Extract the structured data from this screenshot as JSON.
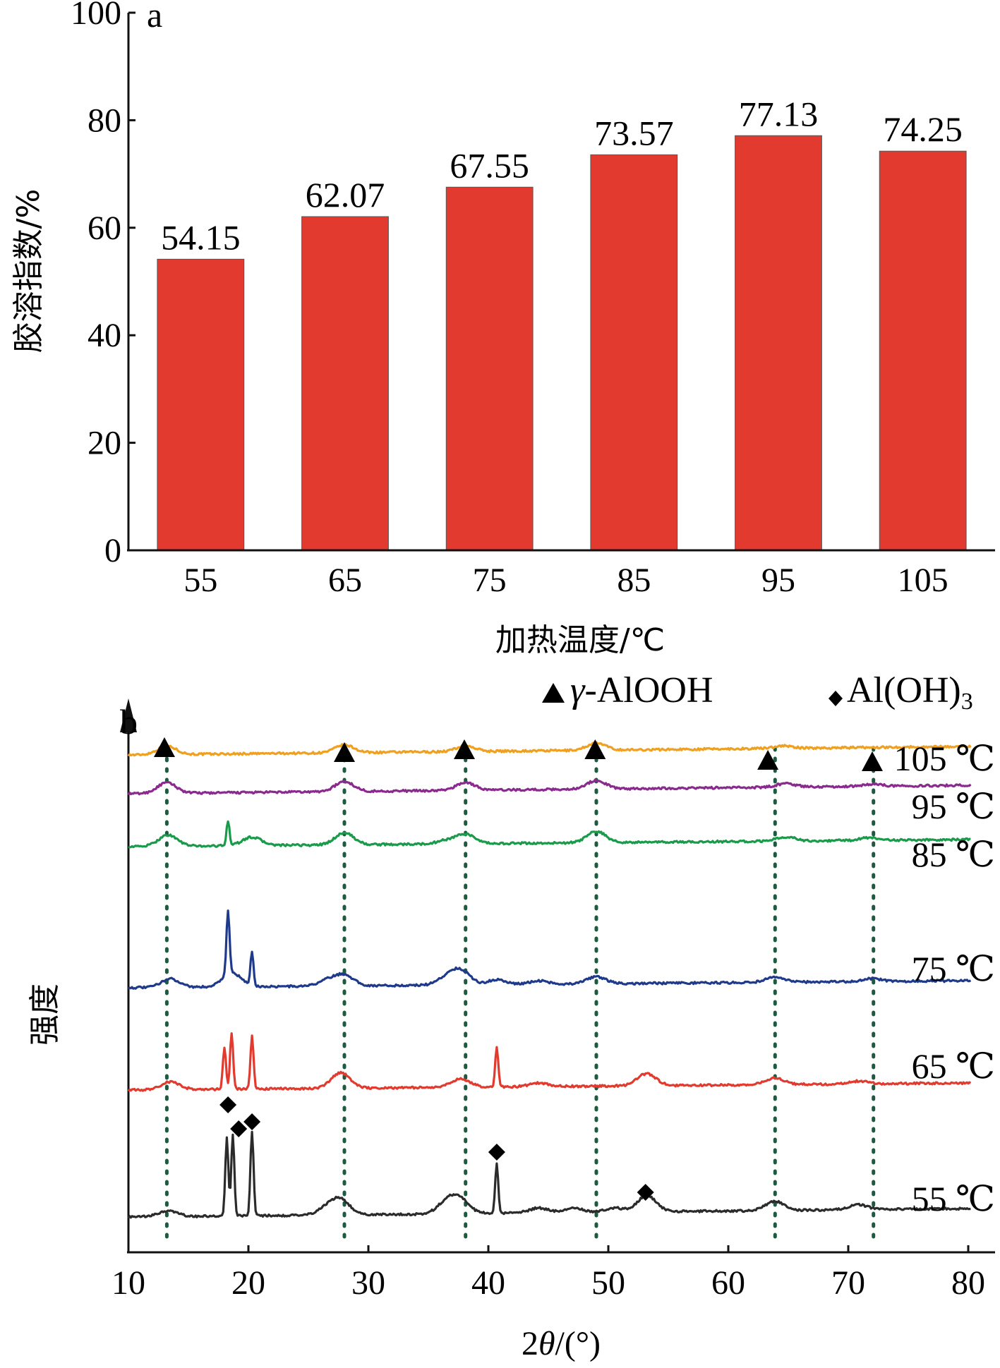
{
  "chart_data": [
    {
      "type": "bar",
      "panel_label": "a",
      "categories": [
        "55",
        "65",
        "75",
        "85",
        "95",
        "105"
      ],
      "values": [
        54.15,
        62.07,
        67.55,
        73.57,
        77.13,
        74.25
      ],
      "data_labels": [
        "54.15",
        "62.07",
        "67.55",
        "73.57",
        "77.13",
        "74.25"
      ],
      "xlabel": "加热温度/℃",
      "ylabel": "胶溶指数/%",
      "ylim": [
        0,
        100
      ],
      "yticks": [
        "0",
        "20",
        "40",
        "60",
        "80",
        "100"
      ],
      "bar_color": "#e23a2e",
      "grid": false
    },
    {
      "type": "line",
      "panel_label": "b",
      "xlabel": "2θ/(°)",
      "xlabel_parts": {
        "num": "2",
        "theta": "θ",
        "unit": "/(°)"
      },
      "ylabel": "强度",
      "xlim": [
        10,
        80
      ],
      "xticks": [
        "10",
        "20",
        "30",
        "40",
        "50",
        "60",
        "70",
        "80"
      ],
      "legend": {
        "boehmite": "γ-AlOOH",
        "boehmite_parts": {
          "gamma": "γ",
          "rest": "-AlOOH"
        },
        "gibbsite": "Al(OH)",
        "gibbsite_sub": "3",
        "placement": "top-right"
      },
      "reference_lines_2theta": [
        13.2,
        28.0,
        38.1,
        49.0,
        63.9,
        72.1
      ],
      "boehmite_markers_2theta": [
        13.0,
        28.0,
        38.0,
        48.9,
        63.3,
        72.0
      ],
      "gibbsite_markers_2theta": [
        18.3,
        18.6,
        20.3,
        40.7,
        53.1
      ],
      "series": [
        {
          "name": "105 ℃",
          "color": "#f0a020",
          "peaks": [
            [
              13.2,
              1.2
            ],
            [
              28.0,
              1.1
            ],
            [
              38.1,
              0.8
            ],
            [
              49.0,
              1.0
            ],
            [
              64.5,
              0.35
            ]
          ]
        },
        {
          "name": "95 ℃",
          "color": "#8b2a8e",
          "peaks": [
            [
              13.2,
              1.5
            ],
            [
              28.0,
              1.4
            ],
            [
              38.1,
              1.1
            ],
            [
              49.0,
              1.2
            ],
            [
              64.8,
              0.5
            ],
            [
              72.0,
              0.3
            ]
          ]
        },
        {
          "name": "85 ℃",
          "color": "#1a9a4a",
          "peaks": [
            [
              13.3,
              1.6
            ],
            [
              18.3,
              3.5
            ],
            [
              20.3,
              1.2
            ],
            [
              28.0,
              1.7
            ],
            [
              36.5,
              0.5
            ],
            [
              38.1,
              1.3
            ],
            [
              49.0,
              1.6
            ],
            [
              64.8,
              0.6
            ],
            [
              71.8,
              0.4
            ]
          ]
        },
        {
          "name": "75 ℃",
          "color": "#1f3a8a",
          "peaks": [
            [
              13.5,
              1.2
            ],
            [
              18.3,
              9.0
            ],
            [
              18.6,
              2.0
            ],
            [
              20.3,
              4.8
            ],
            [
              26.6,
              0.8
            ],
            [
              28.0,
              1.5
            ],
            [
              36.5,
              1.0
            ],
            [
              37.7,
              2.0
            ],
            [
              40.7,
              0.7
            ],
            [
              44.2,
              0.5
            ],
            [
              49.0,
              1.0
            ],
            [
              63.9,
              0.7
            ],
            [
              72.0,
              0.4
            ]
          ]
        },
        {
          "name": "65 ℃",
          "color": "#e23a2e",
          "peaks": [
            [
              13.5,
              1.1
            ],
            [
              18.0,
              6.0
            ],
            [
              18.6,
              8.0
            ],
            [
              20.3,
              7.5
            ],
            [
              27.7,
              2.2
            ],
            [
              37.7,
              1.2
            ],
            [
              40.7,
              5.5
            ],
            [
              44.2,
              0.5
            ],
            [
              53.2,
              1.7
            ],
            [
              63.9,
              0.9
            ],
            [
              70.8,
              0.4
            ]
          ]
        },
        {
          "name": "55 ℃",
          "color": "#2b2b2b",
          "peaks": [
            [
              13.3,
              0.8
            ],
            [
              18.2,
              11.0
            ],
            [
              18.7,
              11.5
            ],
            [
              20.3,
              12.0
            ],
            [
              26.6,
              1.0
            ],
            [
              27.7,
              2.0
            ],
            [
              36.5,
              1.5
            ],
            [
              37.6,
              2.0
            ],
            [
              40.7,
              7.0
            ],
            [
              44.2,
              0.7
            ],
            [
              47.1,
              0.6
            ],
            [
              50.5,
              0.6
            ],
            [
              53.2,
              2.3
            ],
            [
              63.9,
              1.3
            ],
            [
              70.8,
              0.7
            ]
          ]
        }
      ]
    }
  ]
}
